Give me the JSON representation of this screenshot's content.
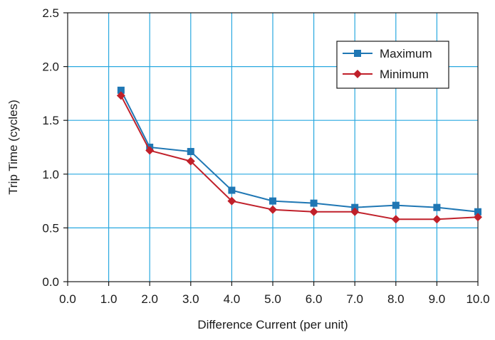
{
  "chart_data": {
    "type": "line",
    "xlabel": "Difference Current (per unit)",
    "ylabel": "Trip Time (cycles)",
    "xlim": [
      0.0,
      10.0
    ],
    "ylim": [
      0.0,
      2.5
    ],
    "x_ticks": [
      "0.0",
      "1.0",
      "2.0",
      "3.0",
      "4.0",
      "5.0",
      "6.0",
      "7.0",
      "8.0",
      "9.0",
      "10.0"
    ],
    "y_ticks": [
      "0.0",
      "0.5",
      "1.0",
      "1.5",
      "2.0",
      "2.5"
    ],
    "grid": true,
    "grid_color": "#29a8e0",
    "legend_position": "top-right",
    "series": [
      {
        "name": "Maximum",
        "color": "#1f77b4",
        "marker": "square",
        "x": [
          1.3,
          2.0,
          3.0,
          4.0,
          5.0,
          6.0,
          7.0,
          8.0,
          9.0,
          10.0
        ],
        "y": [
          1.78,
          1.25,
          1.21,
          0.85,
          0.75,
          0.73,
          0.69,
          0.71,
          0.69,
          0.65
        ]
      },
      {
        "name": "Minimum",
        "color": "#c0202a",
        "marker": "diamond",
        "x": [
          1.3,
          2.0,
          3.0,
          4.0,
          5.0,
          6.0,
          7.0,
          8.0,
          9.0,
          10.0
        ],
        "y": [
          1.73,
          1.22,
          1.12,
          0.75,
          0.67,
          0.65,
          0.65,
          0.58,
          0.58,
          0.6
        ]
      }
    ]
  }
}
